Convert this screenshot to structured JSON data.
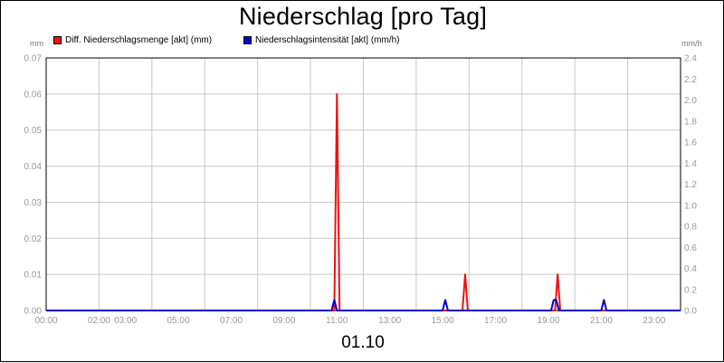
{
  "chart_data": {
    "type": "line",
    "title": "Niederschlag [pro Tag]",
    "date_label": "01.10",
    "y_left_unit": "mm",
    "y_right_unit": "mm/h",
    "y_left_range": [
      0,
      0.07
    ],
    "y_right_range": [
      0,
      2.4
    ],
    "x_range_hours": [
      0,
      24
    ],
    "grid": true,
    "legend_position": "top-left",
    "y_left_ticks": [
      "0.00",
      "0.01",
      "0.02",
      "0.03",
      "0.04",
      "0.05",
      "0.06",
      "0.07"
    ],
    "y_right_ticks": [
      "0.0",
      "0.2",
      "0.4",
      "0.6",
      "0.8",
      "1.0",
      "1.2",
      "1.4",
      "1.6",
      "1.8",
      "2.0",
      "2.2",
      "2.4"
    ],
    "x_ticks": [
      {
        "label": "00:00",
        "hour": 0
      },
      {
        "label": "02:00",
        "hour": 2
      },
      {
        "label": "03:00",
        "hour": 3
      },
      {
        "label": "05:00",
        "hour": 5
      },
      {
        "label": "07:00",
        "hour": 7
      },
      {
        "label": "09:00",
        "hour": 9
      },
      {
        "label": "11:00",
        "hour": 11
      },
      {
        "label": "13:00",
        "hour": 13
      },
      {
        "label": "15:00",
        "hour": 15
      },
      {
        "label": "17:00",
        "hour": 17
      },
      {
        "label": "19:00",
        "hour": 19
      },
      {
        "label": "21:00",
        "hour": 21
      },
      {
        "label": "23:00",
        "hour": 23
      }
    ],
    "series": [
      {
        "name": "Diff. Niederschlagsmenge [akt] (mm)",
        "color": "#ee1111",
        "axis": "left",
        "points": [
          [
            0,
            0
          ],
          [
            10.9,
            0
          ],
          [
            11.0,
            0.06
          ],
          [
            11.1,
            0
          ],
          [
            15.75,
            0
          ],
          [
            15.85,
            0.01
          ],
          [
            15.95,
            0
          ],
          [
            19.25,
            0
          ],
          [
            19.35,
            0.01
          ],
          [
            19.45,
            0
          ],
          [
            24,
            0
          ]
        ]
      },
      {
        "name": "Niederschlagsintensität [akt] (mm/h)",
        "color": "#0000cc",
        "axis": "right",
        "points": [
          [
            0,
            0
          ],
          [
            10.8,
            0
          ],
          [
            10.9,
            0.1
          ],
          [
            11.0,
            0
          ],
          [
            15.0,
            0
          ],
          [
            15.1,
            0.1
          ],
          [
            15.2,
            0
          ],
          [
            19.1,
            0
          ],
          [
            19.2,
            0.1
          ],
          [
            19.3,
            0.1
          ],
          [
            19.4,
            0
          ],
          [
            21.0,
            0
          ],
          [
            21.1,
            0.1
          ],
          [
            21.2,
            0
          ],
          [
            24,
            0
          ]
        ]
      }
    ]
  }
}
